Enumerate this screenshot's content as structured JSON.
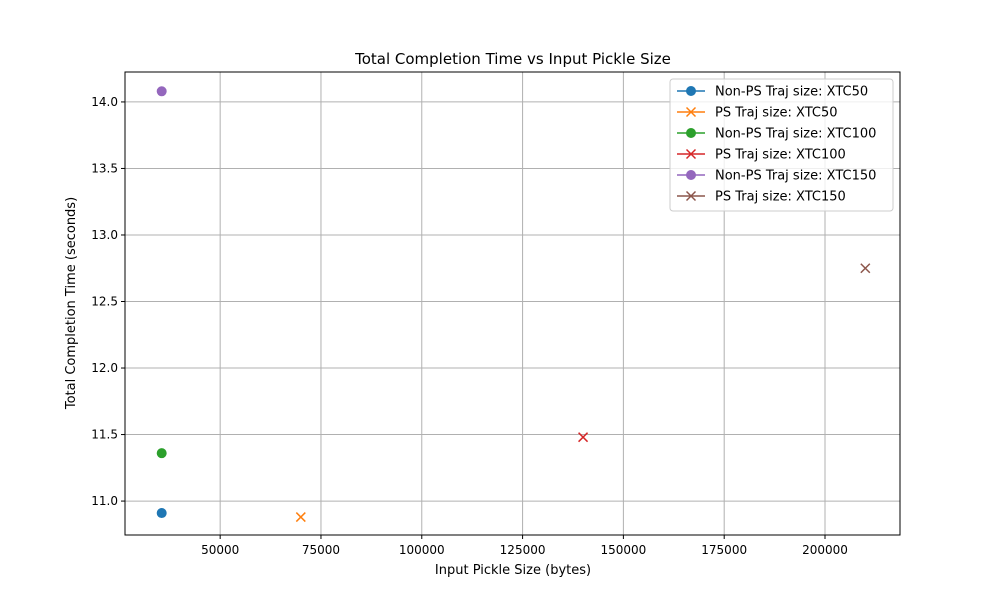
{
  "chart_data": {
    "type": "scatter",
    "title": "Total Completion Time vs Input Pickle Size",
    "xlabel": "Input Pickle Size (bytes)",
    "ylabel": "Total Completion Time (seconds)",
    "xlim": [
      26400,
      218600
    ],
    "ylim": [
      10.745,
      14.225
    ],
    "xticks": [
      50000,
      75000,
      100000,
      125000,
      150000,
      175000,
      200000
    ],
    "yticks": [
      11.0,
      11.5,
      12.0,
      12.5,
      13.0,
      13.5,
      14.0
    ],
    "xtick_labels": [
      "50000",
      "75000",
      "100000",
      "125000",
      "150000",
      "175000",
      "200000"
    ],
    "ytick_labels": [
      "11.0",
      "11.5",
      "12.0",
      "12.5",
      "13.0",
      "13.5",
      "14.0"
    ],
    "grid": true,
    "legend_position": "top-right",
    "series": [
      {
        "name": "Non-PS Traj size: XTC50",
        "marker": "circle",
        "color": "#1f77b4",
        "points": [
          {
            "x": 35500,
            "y": 10.91
          }
        ]
      },
      {
        "name": "PS Traj size: XTC50",
        "marker": "x",
        "color": "#ff7f0e",
        "points": [
          {
            "x": 70000,
            "y": 10.88
          }
        ]
      },
      {
        "name": "Non-PS Traj size: XTC100",
        "marker": "circle",
        "color": "#2ca02c",
        "points": [
          {
            "x": 35500,
            "y": 11.36
          }
        ]
      },
      {
        "name": "PS Traj size: XTC100",
        "marker": "x",
        "color": "#d62728",
        "points": [
          {
            "x": 140000,
            "y": 11.48
          }
        ]
      },
      {
        "name": "Non-PS Traj size: XTC150",
        "marker": "circle",
        "color": "#9467bd",
        "points": [
          {
            "x": 35500,
            "y": 14.08
          }
        ]
      },
      {
        "name": "PS Traj size: XTC150",
        "marker": "x",
        "color": "#8c564b",
        "points": [
          {
            "x": 210000,
            "y": 12.75
          }
        ]
      }
    ]
  }
}
